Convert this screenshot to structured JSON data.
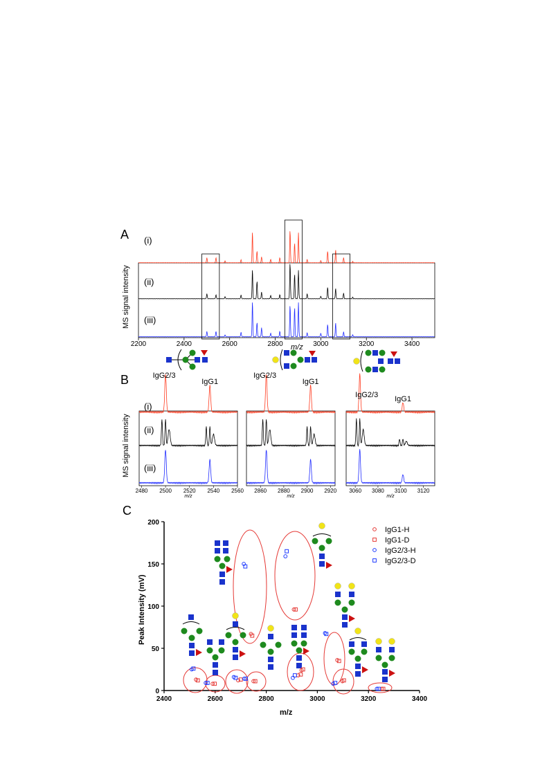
{
  "panels": {
    "a": "A",
    "b": "B",
    "c": "C"
  },
  "traces": [
    "(i)",
    "(ii)",
    "(iii)"
  ],
  "colors": {
    "i": "#ff3b1f",
    "ii": "#000000",
    "iii": "#1f2bff",
    "ellipse": "#e53935"
  },
  "panel_a": {
    "ylabel": "MS signal intensity",
    "xlabel": "m/z",
    "xticks": [
      "2200",
      "2400",
      "2600",
      "2800",
      "3000",
      "3200",
      "3400"
    ],
    "xrange": [
      2200,
      3500
    ],
    "boxes": [
      [
        2478,
        2555
      ],
      [
        2842,
        2918
      ],
      [
        3052,
        3128
      ]
    ]
  },
  "panel_b": {
    "ylabel": "MS signal intensity",
    "xlabel": "m/z",
    "subpanels": [
      {
        "labels": [
          "IgG2/3",
          "IgG1"
        ],
        "xticks": [
          "2480",
          "2500",
          "2520",
          "2540",
          "2560"
        ],
        "xrange": [
          2478,
          2560
        ],
        "peaks": [
          2500,
          2537
        ]
      },
      {
        "labels": [
          "IgG2/3",
          "IgG1"
        ],
        "xticks": [
          "2860",
          "2880",
          "2900",
          "2920"
        ],
        "xrange": [
          2848,
          2924
        ],
        "peaks": [
          2865,
          2903
        ]
      },
      {
        "labels": [
          "IgG2/3",
          "IgG1"
        ],
        "xticks": [
          "3060",
          "3080",
          "3100",
          "3120"
        ],
        "xrange": [
          3052,
          3130
        ],
        "peaks": [
          3064,
          3102
        ]
      }
    ]
  },
  "chart_data": {
    "type": "scatter",
    "xlabel": "m/z",
    "ylabel": "Peak Intensity (mV)",
    "xlim": [
      2400,
      3400
    ],
    "ylim": [
      0,
      200
    ],
    "xticks": [
      "2400",
      "2600",
      "2800",
      "3000",
      "3200",
      "3400"
    ],
    "yticks": [
      "0",
      "50",
      "100",
      "150",
      "200"
    ],
    "legend_position": "top-right",
    "series": [
      {
        "name": "IgG1-H",
        "marker": "circle",
        "color": "#e53935",
        "points": [
          [
            2525,
            13
          ],
          [
            2590,
            8
          ],
          [
            2690,
            12
          ],
          [
            2740,
            67
          ],
          [
            2750,
            11
          ],
          [
            2908,
            96
          ],
          [
            2925,
            18
          ],
          [
            2938,
            24
          ],
          [
            3078,
            36
          ],
          [
            3098,
            11
          ],
          [
            3252,
            2
          ]
        ]
      },
      {
        "name": "IgG1-D",
        "marker": "square",
        "color": "#e53935",
        "points": [
          [
            2532,
            12
          ],
          [
            2598,
            8
          ],
          [
            2700,
            13
          ],
          [
            2745,
            65
          ],
          [
            2757,
            11
          ],
          [
            2915,
            96
          ],
          [
            2935,
            19
          ],
          [
            2944,
            25
          ],
          [
            3085,
            35
          ],
          [
            3104,
            12
          ],
          [
            3258,
            2
          ]
        ]
      },
      {
        "name": "IgG2/3-H",
        "marker": "circle",
        "color": "#1f3bff",
        "points": [
          [
            2508,
            25
          ],
          [
            2563,
            9
          ],
          [
            2673,
            16
          ],
          [
            2714,
            14
          ],
          [
            2712,
            150
          ],
          [
            2875,
            159
          ],
          [
            2904,
            15
          ],
          [
            3030,
            68
          ],
          [
            3062,
            8
          ],
          [
            3233,
            2
          ]
        ]
      },
      {
        "name": "IgG2/3-D",
        "marker": "square",
        "color": "#1f3bff",
        "points": [
          [
            2515,
            26
          ],
          [
            2570,
            9
          ],
          [
            2680,
            15
          ],
          [
            2720,
            14
          ],
          [
            2718,
            147
          ],
          [
            2880,
            165
          ],
          [
            2912,
            18
          ],
          [
            3035,
            67
          ],
          [
            3070,
            9
          ],
          [
            3240,
            2
          ]
        ]
      }
    ]
  }
}
